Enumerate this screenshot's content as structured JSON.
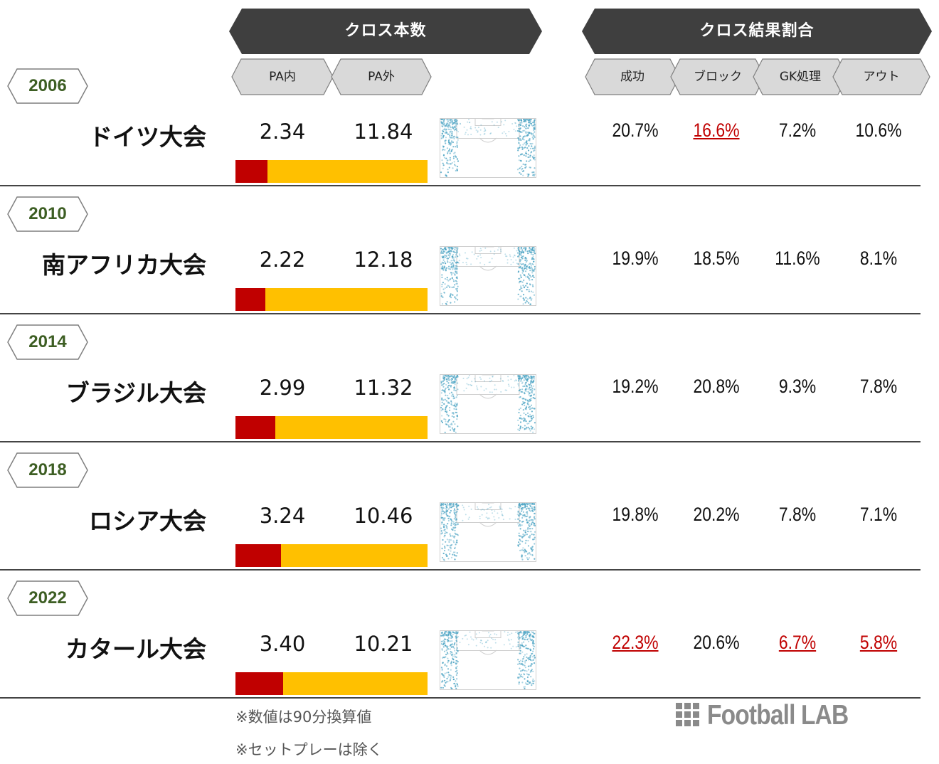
{
  "header": {
    "cross_count": "クロス本数",
    "cross_result": "クロス結果割合",
    "pa_in": "PA内",
    "pa_out": "PA外",
    "success": "成功",
    "block": "ブロック",
    "gk": "GK処理",
    "out": "アウト"
  },
  "colors": {
    "banner": "#3f3f3f",
    "subheader": "#d9d9d9",
    "pa_in_bar": "#c00000",
    "pa_out_bar": "#ffc000",
    "highlight": "#c00000",
    "year_text": "#3d5e23",
    "dots": "#4ba3c3"
  },
  "chart_data": {
    "type": "table",
    "columns": [
      "PA内",
      "PA外",
      "成功",
      "ブロック",
      "GK処理",
      "アウト"
    ],
    "rows": [
      {
        "year": "2006",
        "name": "ドイツ大会",
        "pa_in": "2.34",
        "pa_out": "11.84",
        "pa_in_value": 2.34,
        "pa_out_value": 11.84,
        "success": "20.7%",
        "block": "16.6%",
        "gk": "7.2%",
        "out": "10.6%",
        "highlight": [
          "block"
        ]
      },
      {
        "year": "2010",
        "name": "南アフリカ大会",
        "pa_in": "2.22",
        "pa_out": "12.18",
        "pa_in_value": 2.22,
        "pa_out_value": 12.18,
        "success": "19.9%",
        "block": "18.5%",
        "gk": "11.6%",
        "out": "8.1%",
        "highlight": []
      },
      {
        "year": "2014",
        "name": "ブラジル大会",
        "pa_in": "2.99",
        "pa_out": "11.32",
        "pa_in_value": 2.99,
        "pa_out_value": 11.32,
        "success": "19.2%",
        "block": "20.8%",
        "gk": "9.3%",
        "out": "7.8%",
        "highlight": []
      },
      {
        "year": "2018",
        "name": "ロシア大会",
        "pa_in": "3.24",
        "pa_out": "10.46",
        "pa_in_value": 3.24,
        "pa_out_value": 10.46,
        "success": "19.8%",
        "block": "20.2%",
        "gk": "7.8%",
        "out": "7.1%",
        "highlight": []
      },
      {
        "year": "2022",
        "name": "カタール大会",
        "pa_in": "3.40",
        "pa_out": "10.21",
        "pa_in_value": 3.4,
        "pa_out_value": 10.21,
        "success": "22.3%",
        "block": "20.6%",
        "gk": "6.7%",
        "out": "5.8%",
        "highlight": [
          "success",
          "gk",
          "out"
        ]
      }
    ]
  },
  "notes": {
    "note1": "※数値は90分換算値",
    "note2": "※セットプレーは除く"
  },
  "logo": {
    "text": "Football LAB",
    "icon": "grid-icon"
  }
}
